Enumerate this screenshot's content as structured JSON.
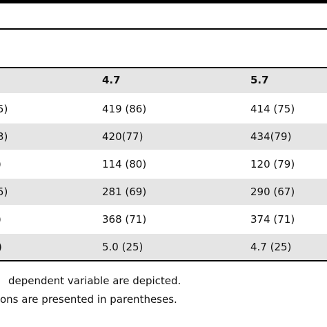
{
  "table": {
    "header": [
      "4.7",
      "5.7"
    ],
    "rows": [
      [
        "5)",
        "419 (86)",
        "414 (75)"
      ],
      [
        "3)",
        "420(77)",
        "434(79)"
      ],
      [
        ")",
        "114 (80)",
        "120 (79)"
      ],
      [
        "5)",
        "281 (69)",
        "290 (67)"
      ],
      [
        ")",
        "368 (71)",
        "374 (71)"
      ],
      [
        ")",
        "5.0 (25)",
        "4.7 (25)"
      ]
    ]
  },
  "footnotes": [
    "dependent variable are depicted.",
    "ons are presented in parentheses."
  ]
}
